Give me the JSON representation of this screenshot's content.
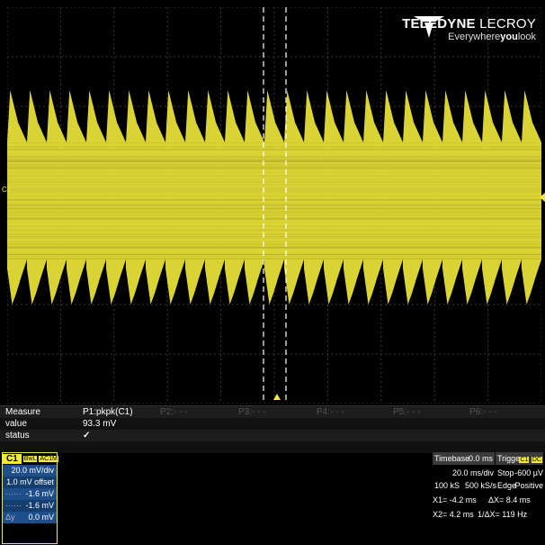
{
  "logo": {
    "brand_bold": "TELEDYNE",
    "brand_light": " LECROY",
    "tagline_a": "Everywhere",
    "tagline_b": "you",
    "tagline_c": "look",
    "mark_icon": "teledyne-logo-icon"
  },
  "channel_marker": "C1",
  "colors": {
    "trace": "#f2ea3a",
    "grid": "#3a3a3a",
    "accent_blue": "#1f4f8a",
    "status_ok": "#5ec23a"
  },
  "measure_table": {
    "row_labels": [
      "Measure",
      "value",
      "status"
    ],
    "params": [
      {
        "name": "P1:pkpk(C1)",
        "value": "93.3 mV",
        "status": "✓"
      },
      {
        "name": "P2:- - -",
        "value": "",
        "status": ""
      },
      {
        "name": "P3:- - -",
        "value": "",
        "status": ""
      },
      {
        "name": "P4:- - -",
        "value": "",
        "status": ""
      },
      {
        "name": "P5:- - -",
        "value": "",
        "status": ""
      },
      {
        "name": "P6:- - -",
        "value": "",
        "status": ""
      }
    ]
  },
  "c1_descriptor": {
    "channel": "C1",
    "badges": [
      "BwL",
      "AC1M"
    ],
    "scale": "20.0 mV/div",
    "offset": "1.0 mV offset",
    "cursor1": "-1.6 mV",
    "cursor2": "-1.6 mV",
    "delta_label": "Δy",
    "delta_value": "0.0 mV"
  },
  "timebase": {
    "label": "Timebase",
    "delay": "0.0 ms",
    "per_div": "20.0 ms/div",
    "samples": "100 kS",
    "rate": "500 kS/s"
  },
  "trigger": {
    "label": "Trigger",
    "channel": "C1",
    "coupling": "DC",
    "mode": "Stop",
    "level": "-600 µV",
    "type": "Edge",
    "slope": "Positive"
  },
  "cursors": {
    "x1": "X1= -4.2 ms",
    "dx": "ΔX=   8.4 ms",
    "x2": "X2= 4.2 ms",
    "inv_dx": "1/ΔX= 119 Hz"
  }
}
